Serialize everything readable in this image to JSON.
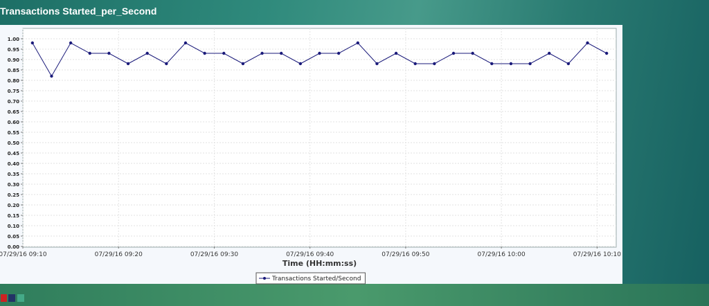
{
  "title": "Transactions Started_per_Second",
  "chart_data": {
    "type": "line",
    "xlabel": "Time (HH:mm:ss)",
    "x": [
      "07/29/16 09:11",
      "07/29/16 09:13",
      "07/29/16 09:15",
      "07/29/16 09:17",
      "07/29/16 09:19",
      "07/29/16 09:21",
      "07/29/16 09:23",
      "07/29/16 09:25",
      "07/29/16 09:27",
      "07/29/16 09:29",
      "07/29/16 09:31",
      "07/29/16 09:33",
      "07/29/16 09:35",
      "07/29/16 09:37",
      "07/29/16 09:39",
      "07/29/16 09:41",
      "07/29/16 09:43",
      "07/29/16 09:45",
      "07/29/16 09:47",
      "07/29/16 09:49",
      "07/29/16 09:51",
      "07/29/16 09:53",
      "07/29/16 09:55",
      "07/29/16 09:57",
      "07/29/16 09:59",
      "07/29/16 10:01",
      "07/29/16 10:03",
      "07/29/16 10:05",
      "07/29/16 10:07",
      "07/29/16 10:09",
      "07/29/16 10:11"
    ],
    "series": [
      {
        "name": "Transactions Started/Second",
        "color": "#1a1a7a",
        "values": [
          0.98,
          0.82,
          0.98,
          0.93,
          0.93,
          0.88,
          0.93,
          0.88,
          0.98,
          0.93,
          0.93,
          0.88,
          0.93,
          0.93,
          0.88,
          0.93,
          0.93,
          0.98,
          0.88,
          0.93,
          0.88,
          0.88,
          0.93,
          0.93,
          0.88,
          0.88,
          0.88,
          0.93,
          0.88,
          0.98,
          0.93
        ]
      }
    ],
    "xlim": [
      "07/29/16 09:10",
      "07/29/16 10:12"
    ],
    "xticks": [
      "07/29/16 09:10",
      "07/29/16 09:20",
      "07/29/16 09:30",
      "07/29/16 09:40",
      "07/29/16 09:50",
      "07/29/16 10:00",
      "07/29/16 10:10"
    ],
    "ylim": [
      0,
      1.05
    ],
    "yticks": [
      {
        "value": 0,
        "label": "0.00"
      },
      {
        "value": 0.05,
        "label": "0.05"
      },
      {
        "value": 0.1,
        "label": "0.10"
      },
      {
        "value": 0.15,
        "label": "0.15"
      },
      {
        "value": 0.2,
        "label": "0.20"
      },
      {
        "value": 0.25,
        "label": "0.25"
      },
      {
        "value": 0.3,
        "label": "0.30"
      },
      {
        "value": 0.35,
        "label": "0.35"
      },
      {
        "value": 0.4,
        "label": "0.40"
      },
      {
        "value": 0.45,
        "label": "0.45"
      },
      {
        "value": 0.5,
        "label": "0.50"
      },
      {
        "value": 0.55,
        "label": "0.55"
      },
      {
        "value": 0.6,
        "label": "0.60"
      },
      {
        "value": 0.65,
        "label": "0.65"
      },
      {
        "value": 0.7,
        "label": "0.70"
      },
      {
        "value": 0.75,
        "label": "0.75"
      },
      {
        "value": 0.8,
        "label": "0.80"
      },
      {
        "value": 0.85,
        "label": "0.85"
      },
      {
        "value": 0.9,
        "label": "0.90"
      },
      {
        "value": 0.95,
        "label": "0.95"
      },
      {
        "value": 1,
        "label": "1.00"
      }
    ],
    "grid": true
  }
}
